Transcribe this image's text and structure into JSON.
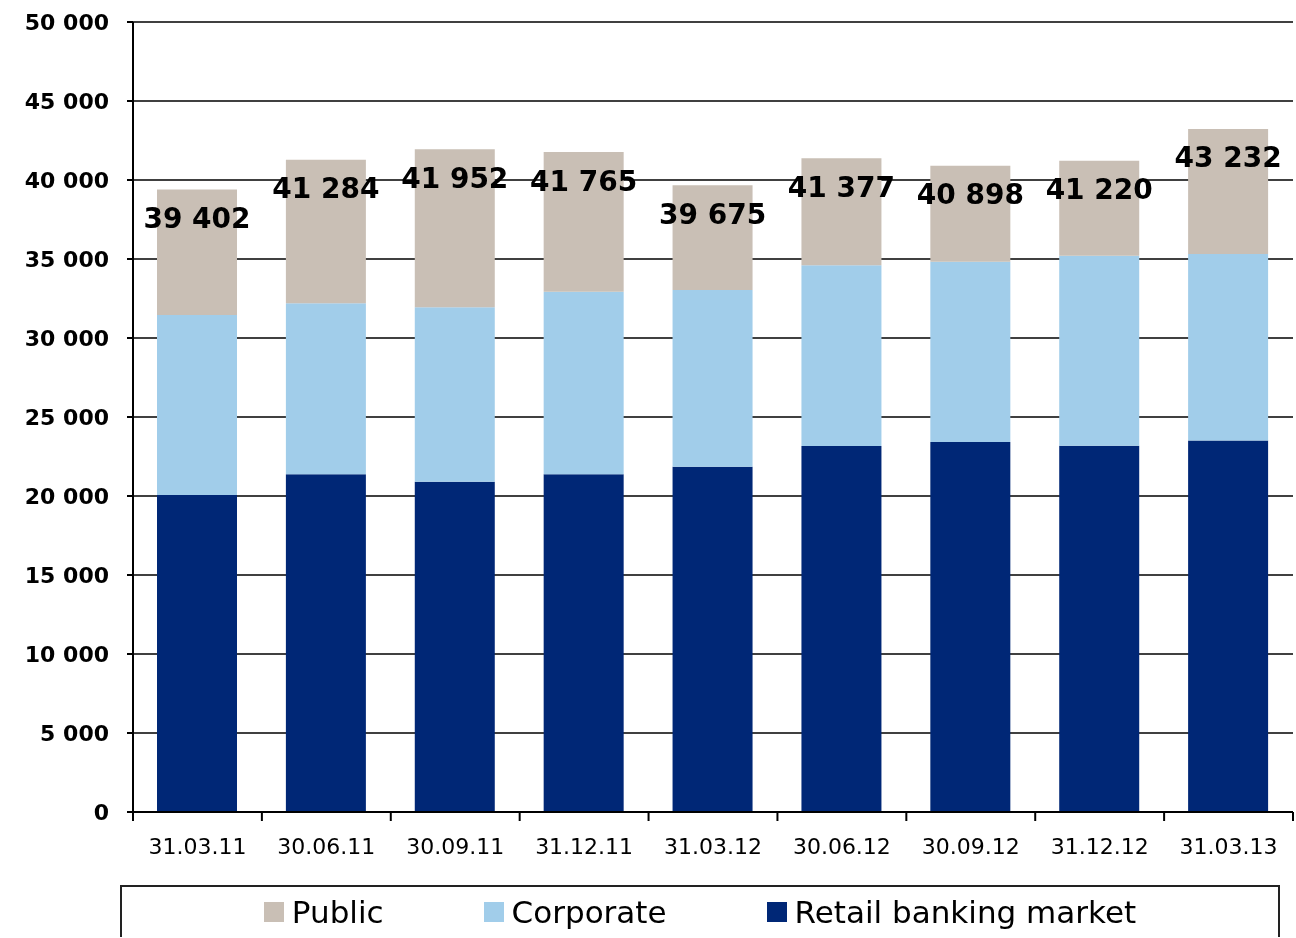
{
  "chart_data": {
    "type": "bar",
    "stacked": true,
    "categories": [
      "31.03.11",
      "30.06.11",
      "30.09.11",
      "31.12.11",
      "31.03.12",
      "30.06.12",
      "30.09.12",
      "31.12.12",
      "31.03.13"
    ],
    "series": [
      {
        "name": "Retail banking market",
        "color": "#002776",
        "values": [
          20060,
          21370,
          20900,
          21370,
          21850,
          23160,
          23420,
          23180,
          23520
        ]
      },
      {
        "name": "Corporate",
        "color": "#a1cdea",
        "values": [
          11400,
          10830,
          11040,
          11560,
          11190,
          11440,
          11410,
          12030,
          11800
        ]
      },
      {
        "name": "Public",
        "color": "#c9bfb5",
        "values": [
          7942,
          9084,
          10012,
          8835,
          6635,
          6777,
          6068,
          6010,
          7912
        ]
      }
    ],
    "totals": [
      "39 402",
      "41 284",
      "41 952",
      "41 765",
      "39 675",
      "41 377",
      "40 898",
      "41 220",
      "43 232"
    ],
    "ylim": [
      0,
      50000
    ],
    "yticks": [
      {
        "value": 0,
        "label": "0"
      },
      {
        "value": 5000,
        "label": "5 000"
      },
      {
        "value": 10000,
        "label": "10 000"
      },
      {
        "value": 15000,
        "label": "15 000"
      },
      {
        "value": 20000,
        "label": "20 000"
      },
      {
        "value": 25000,
        "label": "25 000"
      },
      {
        "value": 30000,
        "label": "30 000"
      },
      {
        "value": 35000,
        "label": "35 000"
      },
      {
        "value": 40000,
        "label": "40 000"
      },
      {
        "value": 45000,
        "label": "45 000"
      },
      {
        "value": 50000,
        "label": "50 000"
      }
    ],
    "grid": "y",
    "legend": "bottom"
  }
}
